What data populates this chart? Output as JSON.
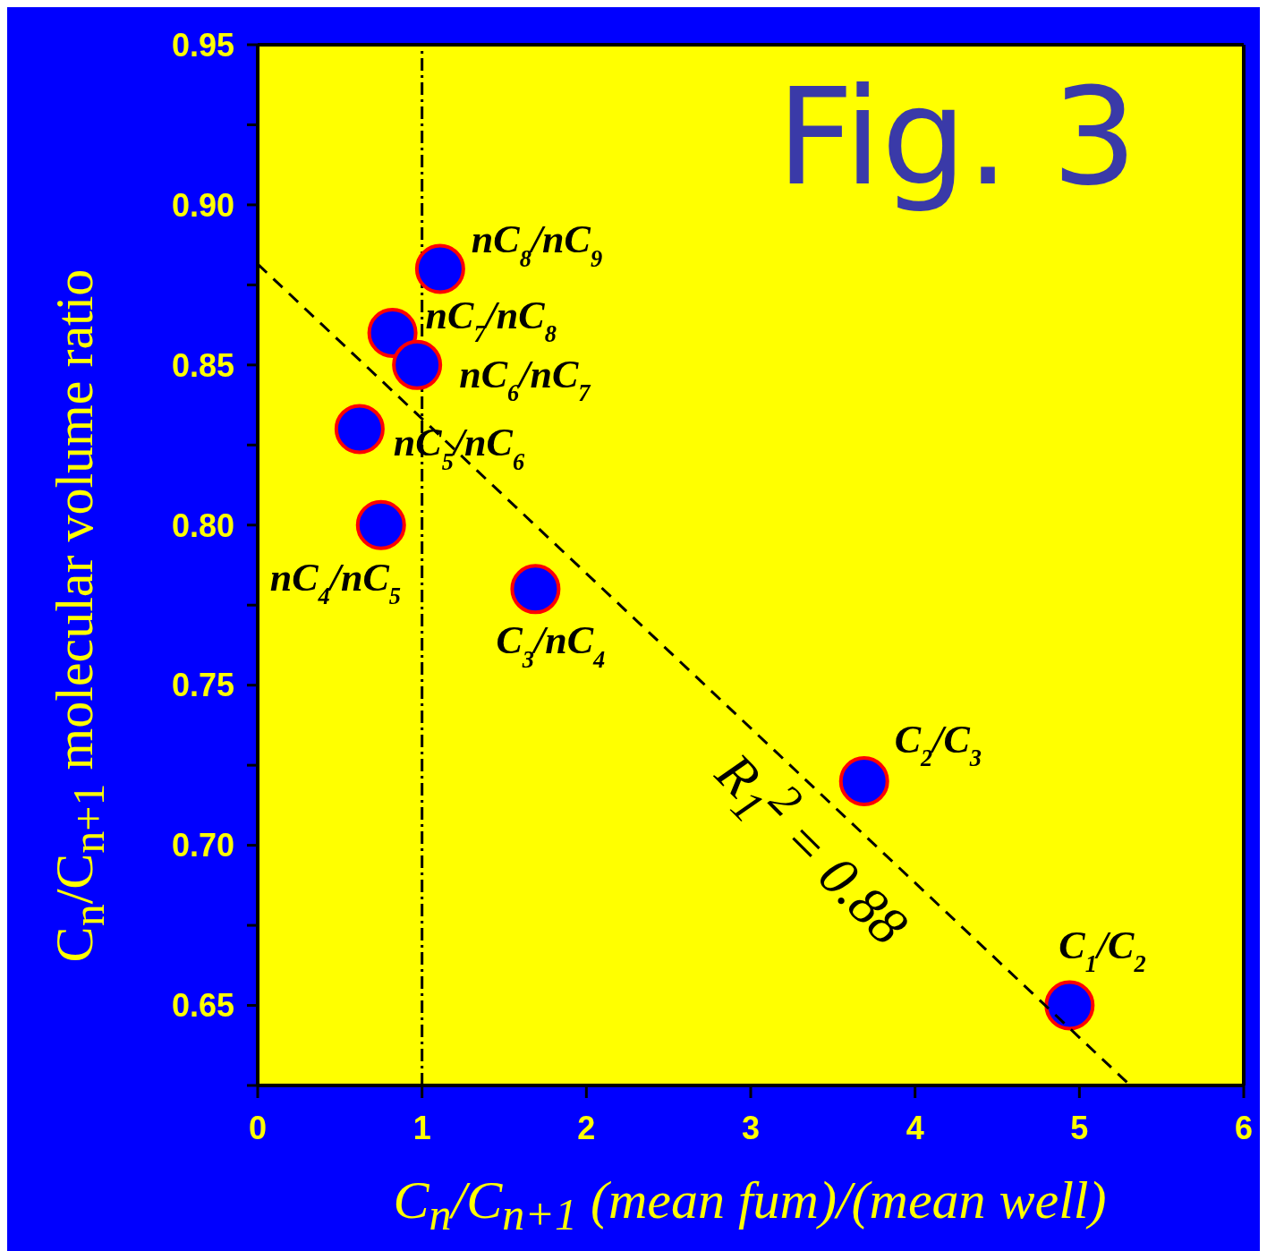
{
  "chart_data": {
    "type": "scatter",
    "title": "Fig. 3",
    "xlabel": "C$_{n}$/C$_{n+1}$ (mean fum)/(mean well)",
    "ylabel": "C$_{n}$/C$_{n+1}$ molecular volume ratio",
    "annotations": [
      "R$_{1}$$^{2}$ = 0.88"
    ],
    "xlim": [
      0,
      6
    ],
    "xticks": [
      0,
      1,
      2,
      3,
      4,
      5,
      6
    ],
    "ylim": [
      0.625,
      0.95
    ],
    "yticks": [
      {
        "value": 0.625,
        "label": null
      },
      {
        "value": 0.65,
        "label": "0.65"
      },
      {
        "value": 0.675,
        "label": null
      },
      {
        "value": 0.7,
        "label": "0.70"
      },
      {
        "value": 0.725,
        "label": null
      },
      {
        "value": 0.75,
        "label": "0.75"
      },
      {
        "value": 0.775,
        "label": null
      },
      {
        "value": 0.8,
        "label": "0.80"
      },
      {
        "value": 0.825,
        "label": null
      },
      {
        "value": 0.85,
        "label": "0.85"
      },
      {
        "value": 0.875,
        "label": null
      },
      {
        "value": 0.9,
        "label": "0.90"
      },
      {
        "value": 0.925,
        "label": null
      },
      {
        "value": 0.95,
        "label": "0.95"
      }
    ],
    "legend": false,
    "marker": "circle",
    "series": [
      {
        "type": "scatter",
        "color": "#0000ff",
        "x": [
          1.11,
          0.82,
          0.97,
          0.62,
          0.75,
          1.69,
          3.69,
          4.94
        ],
        "values": [
          0.88,
          0.86,
          0.85,
          0.83,
          0.8,
          0.78,
          0.72,
          0.65
        ],
        "value_labels": [
          "nC$_{8}$/nC$_{9}$",
          "nC$_{7}$/nC$_{8}$",
          "nC$_{6}$/nC$_{7}$",
          "nC$_{5}$/nC$_{6}$",
          "nC$_{4}$/nC$_{5}$",
          "C$_{3}$/nC$_{4}$",
          "C$_{2}$/C$_{3}$",
          "C$_{1}$/C$_{2}$"
        ]
      },
      {
        "type": "line",
        "color": "#000000",
        "line_style": "dashed",
        "marker": "none",
        "x": [
          0,
          5.31
        ],
        "values": [
          0.8815,
          0.625
        ]
      }
    ],
    "ref_lines": [
      {
        "axis": "x",
        "value": 1,
        "line_style": "dashdot",
        "color": "#000000"
      }
    ]
  }
}
